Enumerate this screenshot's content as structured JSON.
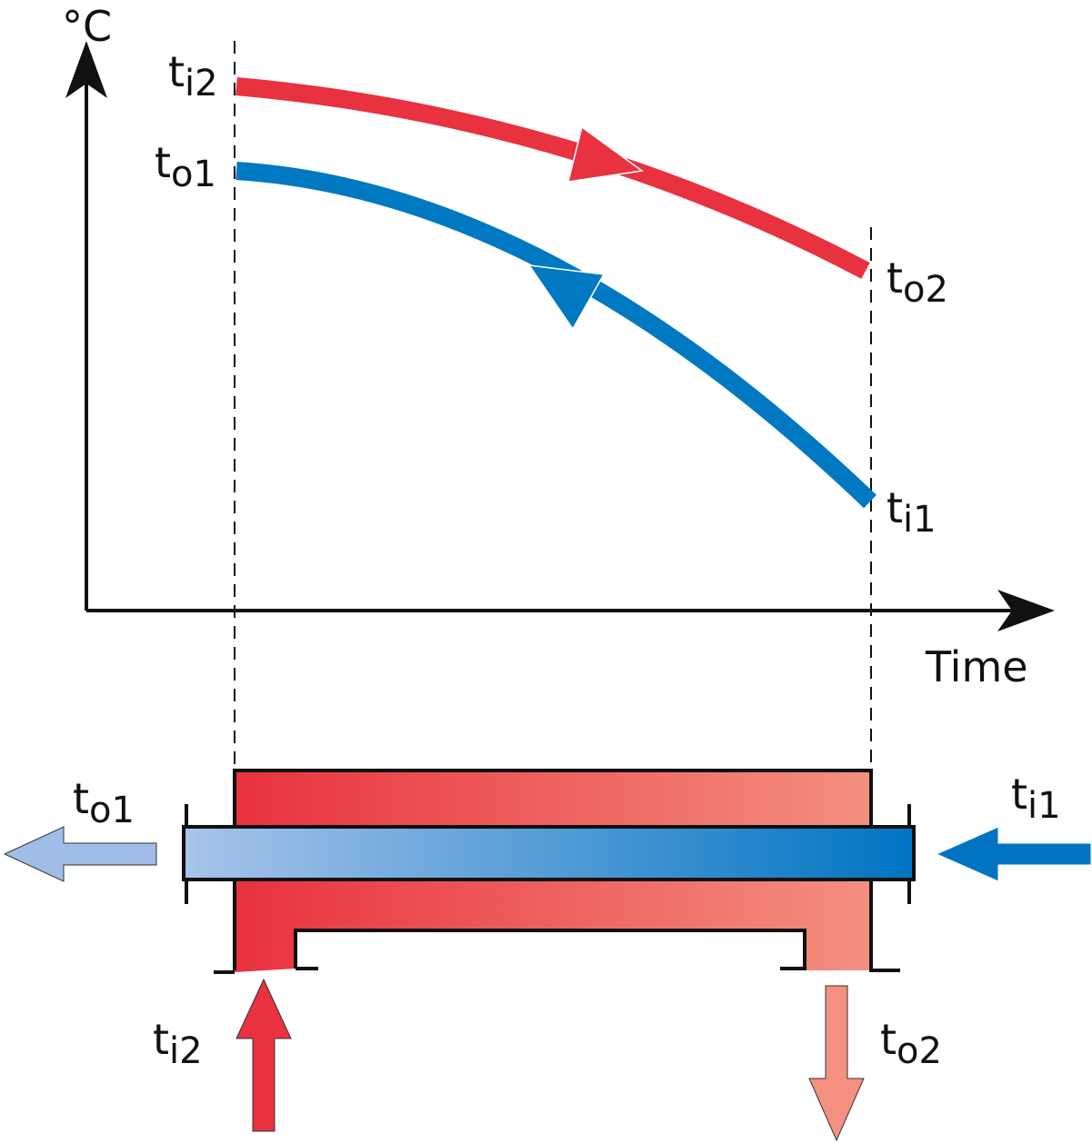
{
  "axes": {
    "y_label": "°C",
    "x_label": "Time"
  },
  "graph_labels": [
    {
      "main": "t",
      "sub": "i2"
    },
    {
      "main": "t",
      "sub": "o1"
    },
    {
      "main": "t",
      "sub": "o2"
    },
    {
      "main": "t",
      "sub": "i1"
    }
  ],
  "exchanger_labels": [
    {
      "main": "t",
      "sub": "o1"
    },
    {
      "main": "t",
      "sub": "i1"
    },
    {
      "main": "t",
      "sub": "i2"
    },
    {
      "main": "t",
      "sub": "o2"
    }
  ]
}
